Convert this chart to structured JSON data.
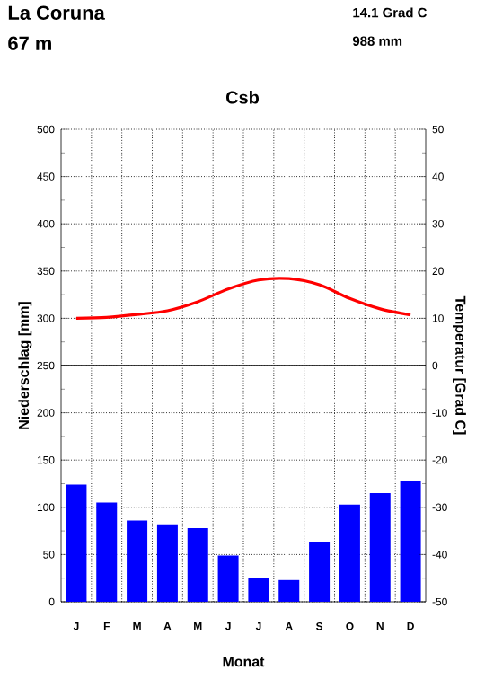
{
  "chart_data": {
    "type": "bar",
    "title": "La Coruna",
    "subtitle": "67 m",
    "annotations": [
      "14.1 Grad C",
      "988 mm",
      "Csb"
    ],
    "xlabel": "Monat",
    "ylabel": "Niederschlag [mm]",
    "y2label": "Temperatur [Grad C]",
    "categories": [
      "J",
      "F",
      "M",
      "A",
      "M",
      "J",
      "J",
      "A",
      "S",
      "O",
      "N",
      "D"
    ],
    "series": [
      {
        "color": "#0000ff",
        "values": [
          124,
          105,
          86,
          82,
          78,
          49,
          25,
          23,
          63,
          103,
          115,
          128
        ]
      },
      {
        "type": "line",
        "axis": "y2",
        "color": "#ff0000",
        "values": [
          10.0,
          10.2,
          10.8,
          11.6,
          13.5,
          16.2,
          18.1,
          18.4,
          17.1,
          14.2,
          12.0,
          10.7
        ]
      }
    ],
    "ylim": [
      0,
      500
    ],
    "yticks": [
      0,
      {
        "value": 25,
        "label": null
      },
      50,
      {
        "value": 75,
        "label": null
      },
      100,
      {
        "value": 125,
        "label": null
      },
      150,
      {
        "value": 175,
        "label": null
      },
      200,
      {
        "value": 225,
        "label": null
      },
      250,
      {
        "value": 275,
        "label": null
      },
      300,
      {
        "value": 325,
        "label": null
      },
      350,
      {
        "value": 375,
        "label": null
      },
      400,
      {
        "value": 425,
        "label": null
      },
      450,
      {
        "value": 475,
        "label": null
      },
      500
    ],
    "y2lim": [
      -50,
      50
    ],
    "y2ticks": [
      -50,
      {
        "value": -45,
        "label": null
      },
      -40,
      {
        "value": -35,
        "label": null
      },
      -30,
      {
        "value": -25,
        "label": null
      },
      -20,
      {
        "value": -15,
        "label": null
      },
      -10,
      {
        "value": -5,
        "label": null
      },
      0,
      {
        "value": 5,
        "label": null
      },
      10,
      {
        "value": 15,
        "label": null
      },
      20,
      {
        "value": 25,
        "label": null
      },
      30,
      {
        "value": 35,
        "label": null
      },
      40,
      {
        "value": 45,
        "label": null
      },
      50
    ],
    "ref_lines": [
      {
        "axis": "y2",
        "value": 0,
        "color": "#000000"
      }
    ],
    "grid": true
  }
}
